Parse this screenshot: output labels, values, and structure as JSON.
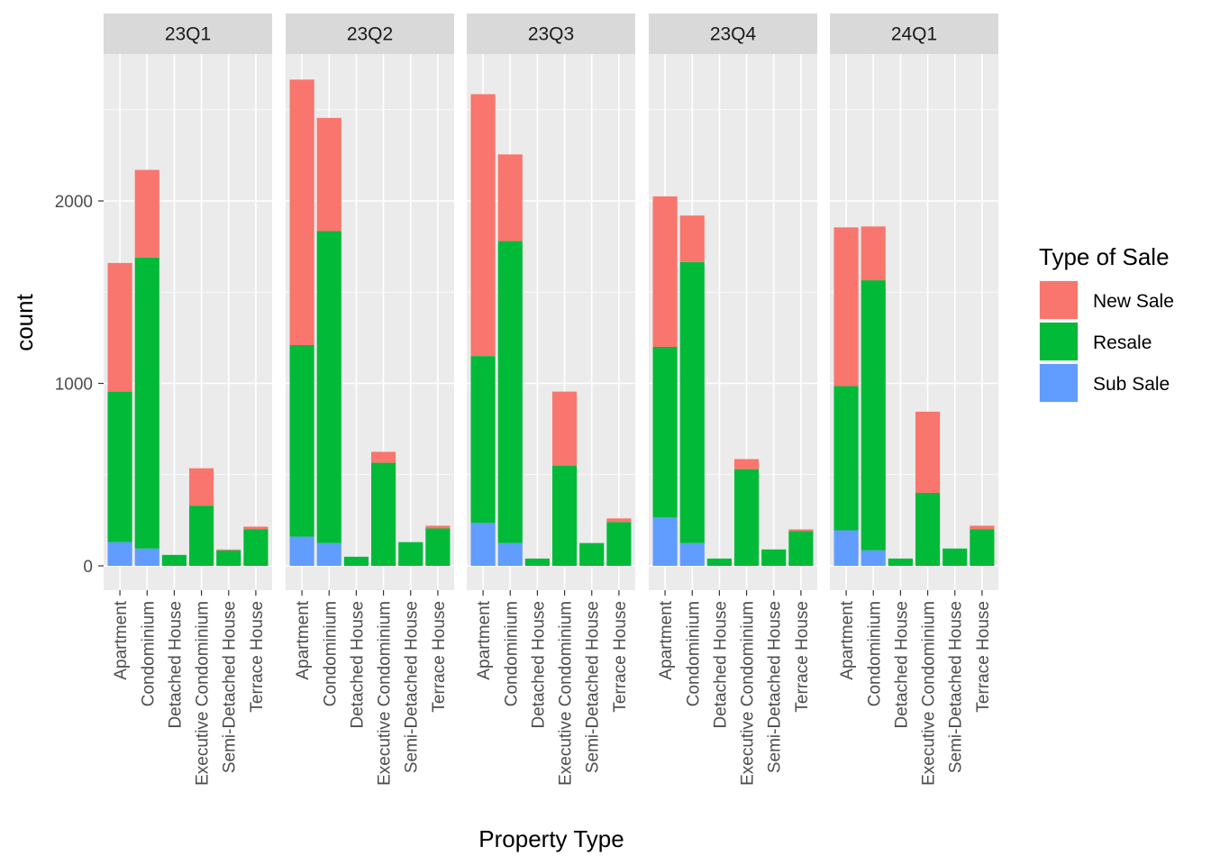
{
  "chart_data": {
    "type": "bar",
    "stacked": true,
    "facet_by": "quarter",
    "panels": [
      "23Q1",
      "23Q2",
      "23Q3",
      "23Q4",
      "24Q1"
    ],
    "categories": [
      "Apartment",
      "Condominium",
      "Detached House",
      "Executive Condominium",
      "Semi-Detached House",
      "Terrace House"
    ],
    "xlabel": "Property Type",
    "ylabel": "count",
    "ylim": [
      0,
      2700
    ],
    "yticks": [
      0,
      1000,
      2000
    ],
    "grid": true,
    "legend": {
      "title": "Type of Sale",
      "placement": "right"
    },
    "series": [
      {
        "name": "Sub Sale",
        "color": "#619CFF",
        "values": [
          [
            130,
            95,
            0,
            0,
            0,
            0
          ],
          [
            160,
            125,
            0,
            0,
            0,
            0
          ],
          [
            235,
            125,
            0,
            0,
            0,
            0
          ],
          [
            265,
            125,
            0,
            0,
            0,
            0
          ],
          [
            195,
            85,
            0,
            0,
            0,
            0
          ]
        ]
      },
      {
        "name": "Resale",
        "color": "#00BA38",
        "values": [
          [
            825,
            1595,
            60,
            330,
            85,
            200
          ],
          [
            1050,
            1710,
            50,
            565,
            130,
            205
          ],
          [
            915,
            1655,
            40,
            550,
            125,
            240
          ],
          [
            935,
            1540,
            40,
            530,
            90,
            190
          ],
          [
            790,
            1480,
            40,
            400,
            95,
            200
          ]
        ]
      },
      {
        "name": "New Sale",
        "color": "#F8766D",
        "values": [
          [
            705,
            480,
            0,
            205,
            5,
            15
          ],
          [
            1455,
            620,
            0,
            60,
            0,
            15
          ],
          [
            1435,
            475,
            0,
            405,
            0,
            20
          ],
          [
            825,
            255,
            0,
            55,
            0,
            10
          ],
          [
            870,
            295,
            0,
            445,
            0,
            20
          ]
        ]
      }
    ]
  }
}
